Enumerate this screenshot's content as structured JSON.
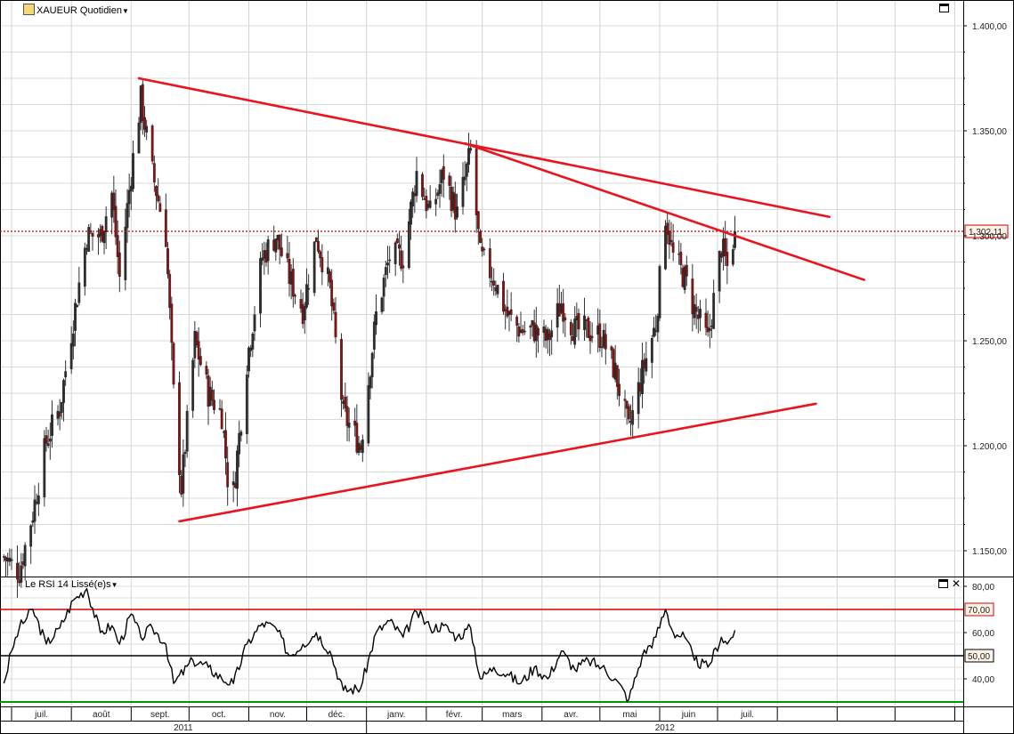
{
  "main_panel": {
    "title": "XAUEUR Quotidien",
    "current_price_label": "1.302,11",
    "y_ticks": [
      "1.400,00",
      "1.350,00",
      "1.300,00",
      "1.250,00",
      "1.200,00",
      "1.150,00"
    ],
    "icon": "chart-icon"
  },
  "rsi_panel": {
    "title": "Le RSI 14 Lissé(e)s",
    "y_ticks": [
      "80,00",
      "60,00",
      "40,00"
    ],
    "level_labels": [
      "70,00",
      "50,00"
    ]
  },
  "x_axis": {
    "months": [
      "juil.",
      "août",
      "sept.",
      "oct.",
      "nov.",
      "déc.",
      "janv.",
      "févr.",
      "mars",
      "avr.",
      "mai",
      "juin",
      "juil."
    ],
    "years": [
      "2011",
      "2012"
    ]
  },
  "colors": {
    "trendline": "#e8141e",
    "price_line": "#cc0000",
    "rsi_line": "#000000",
    "rsi_70": "#d80000",
    "rsi_50": "#000000",
    "rsi_30": "#009900",
    "candle_up": "#2d2d2d",
    "candle_down": "#8b1010"
  },
  "chart_data": [
    {
      "type": "candlestick",
      "title": "XAUEUR Quotidien",
      "ylim": [
        1130,
        1410
      ],
      "current_price": 1302.11,
      "x_months": [
        "juil.",
        "août",
        "sept.",
        "oct.",
        "nov.",
        "déc.",
        "janv.",
        "févr.",
        "mars",
        "avr.",
        "mai",
        "juin",
        "juil."
      ],
      "close_path": [
        {
          "date": "2011-06-27",
          "c": 1147
        },
        {
          "date": "2011-07-05",
          "c": 1140
        },
        {
          "date": "2011-07-12",
          "c": 1168
        },
        {
          "date": "2011-07-19",
          "c": 1202
        },
        {
          "date": "2011-07-26",
          "c": 1218
        },
        {
          "date": "2011-08-02",
          "c": 1260
        },
        {
          "date": "2011-08-09",
          "c": 1300
        },
        {
          "date": "2011-08-16",
          "c": 1300
        },
        {
          "date": "2011-08-22",
          "c": 1320
        },
        {
          "date": "2011-08-26",
          "c": 1280
        },
        {
          "date": "2011-09-01",
          "c": 1330
        },
        {
          "date": "2011-09-06",
          "c": 1365
        },
        {
          "date": "2011-09-12",
          "c": 1330
        },
        {
          "date": "2011-09-19",
          "c": 1300
        },
        {
          "date": "2011-09-23",
          "c": 1225
        },
        {
          "date": "2011-09-27",
          "c": 1180
        },
        {
          "date": "2011-10-04",
          "c": 1250
        },
        {
          "date": "2011-10-11",
          "c": 1225
        },
        {
          "date": "2011-10-18",
          "c": 1215
        },
        {
          "date": "2011-10-21",
          "c": 1185
        },
        {
          "date": "2011-10-24",
          "c": 1178
        },
        {
          "date": "2011-10-31",
          "c": 1240
        },
        {
          "date": "2011-11-08",
          "c": 1290
        },
        {
          "date": "2011-11-15",
          "c": 1300
        },
        {
          "date": "2011-11-22",
          "c": 1280
        },
        {
          "date": "2011-11-29",
          "c": 1265
        },
        {
          "date": "2011-12-06",
          "c": 1300
        },
        {
          "date": "2011-12-13",
          "c": 1275
        },
        {
          "date": "2011-12-20",
          "c": 1215
        },
        {
          "date": "2011-12-29",
          "c": 1200
        },
        {
          "date": "2012-01-06",
          "c": 1262
        },
        {
          "date": "2012-01-13",
          "c": 1290
        },
        {
          "date": "2012-01-20",
          "c": 1290
        },
        {
          "date": "2012-01-27",
          "c": 1330
        },
        {
          "date": "2012-02-03",
          "c": 1310
        },
        {
          "date": "2012-02-10",
          "c": 1330
        },
        {
          "date": "2012-02-17",
          "c": 1310
        },
        {
          "date": "2012-02-24",
          "c": 1340
        },
        {
          "date": "2012-02-29",
          "c": 1290
        },
        {
          "date": "2012-03-07",
          "c": 1280
        },
        {
          "date": "2012-03-14",
          "c": 1262
        },
        {
          "date": "2012-03-21",
          "c": 1255
        },
        {
          "date": "2012-03-28",
          "c": 1255
        },
        {
          "date": "2012-04-04",
          "c": 1250
        },
        {
          "date": "2012-04-11",
          "c": 1268
        },
        {
          "date": "2012-04-18",
          "c": 1255
        },
        {
          "date": "2012-04-25",
          "c": 1255
        },
        {
          "date": "2012-05-02",
          "c": 1252
        },
        {
          "date": "2012-05-09",
          "c": 1235
        },
        {
          "date": "2012-05-16",
          "c": 1207
        },
        {
          "date": "2012-05-23",
          "c": 1235
        },
        {
          "date": "2012-05-30",
          "c": 1258
        },
        {
          "date": "2012-06-04",
          "c": 1310
        },
        {
          "date": "2012-06-08",
          "c": 1290
        },
        {
          "date": "2012-06-14",
          "c": 1280
        },
        {
          "date": "2012-06-19",
          "c": 1265
        },
        {
          "date": "2012-06-26",
          "c": 1250
        },
        {
          "date": "2012-07-03",
          "c": 1295
        },
        {
          "date": "2012-07-06",
          "c": 1285
        },
        {
          "date": "2012-07-10",
          "c": 1302.11
        }
      ],
      "trendlines": [
        {
          "from": {
            "date": "2011-09-05",
            "y": 1375
          },
          "to": {
            "date": "2012-08-28",
            "y": 1309
          }
        },
        {
          "from": {
            "date": "2012-02-21",
            "y": 1344
          },
          "to": {
            "date": "2012-09-15",
            "y": 1279
          }
        },
        {
          "from": {
            "date": "2011-09-26",
            "y": 1164
          },
          "to": {
            "date": "2012-08-21",
            "y": 1220
          }
        }
      ]
    },
    {
      "type": "line",
      "title": "Le RSI 14 Lissé(e)s",
      "ylim": [
        30,
        82
      ],
      "levels": [
        70,
        50,
        30
      ],
      "points": [
        {
          "date": "2011-06-27",
          "v": 38
        },
        {
          "date": "2011-07-01",
          "v": 52
        },
        {
          "date": "2011-07-05",
          "v": 62
        },
        {
          "date": "2011-07-12",
          "v": 70
        },
        {
          "date": "2011-07-19",
          "v": 55
        },
        {
          "date": "2011-07-26",
          "v": 62
        },
        {
          "date": "2011-08-02",
          "v": 74
        },
        {
          "date": "2011-08-09",
          "v": 79
        },
        {
          "date": "2011-08-16",
          "v": 60
        },
        {
          "date": "2011-08-22",
          "v": 63
        },
        {
          "date": "2011-08-26",
          "v": 55
        },
        {
          "date": "2011-09-01",
          "v": 68
        },
        {
          "date": "2011-09-06",
          "v": 58
        },
        {
          "date": "2011-09-12",
          "v": 62
        },
        {
          "date": "2011-09-19",
          "v": 55
        },
        {
          "date": "2011-09-23",
          "v": 38
        },
        {
          "date": "2011-10-03",
          "v": 48
        },
        {
          "date": "2011-10-11",
          "v": 45
        },
        {
          "date": "2011-10-18",
          "v": 40
        },
        {
          "date": "2011-10-24",
          "v": 38
        },
        {
          "date": "2011-10-31",
          "v": 55
        },
        {
          "date": "2011-11-08",
          "v": 64
        },
        {
          "date": "2011-11-15",
          "v": 62
        },
        {
          "date": "2011-11-22",
          "v": 50
        },
        {
          "date": "2011-11-29",
          "v": 55
        },
        {
          "date": "2011-12-06",
          "v": 60
        },
        {
          "date": "2011-12-13",
          "v": 52
        },
        {
          "date": "2011-12-20",
          "v": 35
        },
        {
          "date": "2011-12-29",
          "v": 36
        },
        {
          "date": "2012-01-06",
          "v": 60
        },
        {
          "date": "2012-01-13",
          "v": 65
        },
        {
          "date": "2012-01-20",
          "v": 58
        },
        {
          "date": "2012-01-27",
          "v": 69
        },
        {
          "date": "2012-02-03",
          "v": 62
        },
        {
          "date": "2012-02-10",
          "v": 63
        },
        {
          "date": "2012-02-17",
          "v": 58
        },
        {
          "date": "2012-02-24",
          "v": 62
        },
        {
          "date": "2012-02-29",
          "v": 40
        },
        {
          "date": "2012-03-07",
          "v": 45
        },
        {
          "date": "2012-03-14",
          "v": 42
        },
        {
          "date": "2012-03-21",
          "v": 38
        },
        {
          "date": "2012-03-28",
          "v": 45
        },
        {
          "date": "2012-04-04",
          "v": 40
        },
        {
          "date": "2012-04-11",
          "v": 52
        },
        {
          "date": "2012-04-18",
          "v": 44
        },
        {
          "date": "2012-04-25",
          "v": 48
        },
        {
          "date": "2012-05-02",
          "v": 45
        },
        {
          "date": "2012-05-09",
          "v": 40
        },
        {
          "date": "2012-05-16",
          "v": 31
        },
        {
          "date": "2012-05-23",
          "v": 50
        },
        {
          "date": "2012-05-30",
          "v": 58
        },
        {
          "date": "2012-06-04",
          "v": 70
        },
        {
          "date": "2012-06-08",
          "v": 60
        },
        {
          "date": "2012-06-14",
          "v": 58
        },
        {
          "date": "2012-06-19",
          "v": 48
        },
        {
          "date": "2012-06-26",
          "v": 45
        },
        {
          "date": "2012-07-03",
          "v": 58
        },
        {
          "date": "2012-07-06",
          "v": 55
        },
        {
          "date": "2012-07-10",
          "v": 61
        }
      ]
    }
  ]
}
